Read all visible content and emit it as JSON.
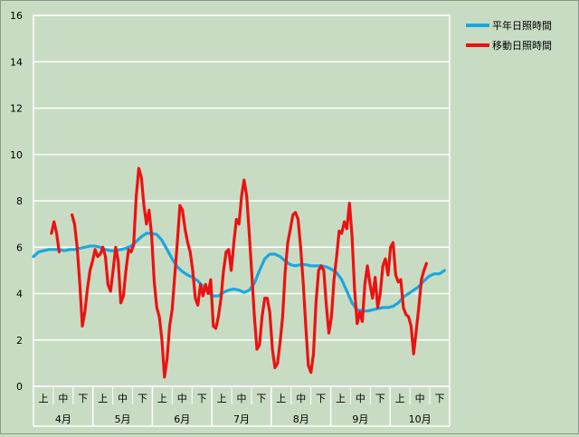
{
  "chart_data": {
    "type": "line",
    "ylim": [
      0,
      16
    ],
    "yticks": [
      0,
      2,
      4,
      6,
      8,
      10,
      12,
      14,
      16
    ],
    "grid": "horizontal",
    "legend_position": "top-right",
    "months": [
      "4月",
      "5月",
      "6月",
      "7月",
      "8月",
      "9月",
      "10月"
    ],
    "decades": [
      "上",
      "中",
      "下"
    ],
    "series": [
      {
        "name": "平年日照時間",
        "color": "#1aa7e0",
        "points": [
          [
            0,
            5.6
          ],
          [
            2,
            5.8
          ],
          [
            4,
            5.85
          ],
          [
            6,
            5.9
          ],
          [
            8,
            5.9
          ],
          [
            10,
            5.9
          ],
          [
            12,
            5.85
          ],
          [
            14,
            5.9
          ],
          [
            16,
            5.9
          ],
          [
            18,
            5.95
          ],
          [
            20,
            6.0
          ],
          [
            22,
            6.05
          ],
          [
            24,
            6.05
          ],
          [
            26,
            6.0
          ],
          [
            28,
            5.9
          ],
          [
            30,
            5.85
          ],
          [
            32,
            5.85
          ],
          [
            34,
            5.9
          ],
          [
            36,
            5.95
          ],
          [
            38,
            6.05
          ],
          [
            40,
            6.25
          ],
          [
            42,
            6.45
          ],
          [
            44,
            6.6
          ],
          [
            46,
            6.6
          ],
          [
            48,
            6.55
          ],
          [
            50,
            6.3
          ],
          [
            52,
            5.9
          ],
          [
            54,
            5.5
          ],
          [
            56,
            5.15
          ],
          [
            58,
            4.95
          ],
          [
            60,
            4.8
          ],
          [
            62,
            4.7
          ],
          [
            64,
            4.55
          ],
          [
            66,
            4.3
          ],
          [
            68,
            4.05
          ],
          [
            70,
            3.9
          ],
          [
            72,
            3.9
          ],
          [
            74,
            4.05
          ],
          [
            76,
            4.15
          ],
          [
            78,
            4.2
          ],
          [
            80,
            4.15
          ],
          [
            82,
            4.05
          ],
          [
            84,
            4.15
          ],
          [
            86,
            4.45
          ],
          [
            88,
            5.0
          ],
          [
            90,
            5.5
          ],
          [
            92,
            5.7
          ],
          [
            94,
            5.7
          ],
          [
            96,
            5.6
          ],
          [
            98,
            5.4
          ],
          [
            100,
            5.25
          ],
          [
            102,
            5.2
          ],
          [
            104,
            5.25
          ],
          [
            106,
            5.25
          ],
          [
            108,
            5.2
          ],
          [
            110,
            5.2
          ],
          [
            112,
            5.2
          ],
          [
            114,
            5.15
          ],
          [
            116,
            5.05
          ],
          [
            118,
            4.9
          ],
          [
            120,
            4.6
          ],
          [
            122,
            4.1
          ],
          [
            124,
            3.6
          ],
          [
            126,
            3.3
          ],
          [
            128,
            3.25
          ],
          [
            130,
            3.25
          ],
          [
            132,
            3.3
          ],
          [
            134,
            3.35
          ],
          [
            136,
            3.4
          ],
          [
            138,
            3.4
          ],
          [
            140,
            3.45
          ],
          [
            142,
            3.6
          ],
          [
            144,
            3.85
          ],
          [
            146,
            4.0
          ],
          [
            148,
            4.15
          ],
          [
            150,
            4.3
          ],
          [
            152,
            4.55
          ],
          [
            154,
            4.75
          ],
          [
            156,
            4.85
          ],
          [
            158,
            4.85
          ],
          [
            160,
            5.0
          ]
        ]
      },
      {
        "name": "移動日照時間",
        "color": "#ee1111",
        "segments": [
          [
            [
              7,
              6.6
            ],
            [
              8,
              7.1
            ],
            [
              9,
              6.6
            ],
            [
              10,
              5.8
            ]
          ],
          [
            [
              15,
              7.4
            ],
            [
              16,
              7.0
            ],
            [
              17,
              6.0
            ],
            [
              18,
              4.5
            ],
            [
              19,
              2.6
            ],
            [
              20,
              3.2
            ],
            [
              21,
              4.2
            ],
            [
              22,
              5.0
            ],
            [
              23,
              5.4
            ],
            [
              24,
              5.9
            ],
            [
              25,
              5.6
            ],
            [
              26,
              5.7
            ],
            [
              27,
              6.0
            ],
            [
              28,
              5.6
            ],
            [
              29,
              4.4
            ],
            [
              30,
              4.1
            ],
            [
              31,
              5.0
            ],
            [
              32,
              6.0
            ],
            [
              33,
              5.4
            ],
            [
              34,
              3.6
            ],
            [
              35,
              3.9
            ],
            [
              36,
              5.0
            ],
            [
              37,
              5.9
            ],
            [
              38,
              5.8
            ],
            [
              39,
              6.1
            ],
            [
              40,
              8.2
            ],
            [
              41,
              9.4
            ],
            [
              42,
              9.0
            ],
            [
              43,
              7.8
            ],
            [
              44,
              7.0
            ],
            [
              45,
              7.6
            ],
            [
              46,
              6.5
            ],
            [
              47,
              4.5
            ],
            [
              48,
              3.4
            ],
            [
              49,
              3.0
            ],
            [
              50,
              2.0
            ],
            [
              51,
              0.4
            ],
            [
              52,
              1.2
            ],
            [
              53,
              2.6
            ],
            [
              54,
              3.3
            ],
            [
              55,
              4.8
            ],
            [
              56,
              6.2
            ],
            [
              57,
              7.8
            ],
            [
              58,
              7.6
            ],
            [
              59,
              6.8
            ],
            [
              60,
              6.2
            ],
            [
              61,
              5.8
            ],
            [
              62,
              5.0
            ],
            [
              63,
              3.8
            ],
            [
              64,
              3.5
            ],
            [
              65,
              4.4
            ],
            [
              66,
              3.9
            ],
            [
              67,
              4.4
            ],
            [
              68,
              4.0
            ],
            [
              69,
              4.6
            ],
            [
              70,
              2.6
            ],
            [
              71,
              2.5
            ],
            [
              72,
              3.0
            ],
            [
              73,
              3.8
            ],
            [
              74,
              5.0
            ],
            [
              75,
              5.8
            ],
            [
              76,
              5.9
            ],
            [
              77,
              5.0
            ],
            [
              78,
              6.2
            ],
            [
              79,
              7.2
            ],
            [
              80,
              7.0
            ],
            [
              81,
              8.2
            ],
            [
              82,
              8.9
            ],
            [
              83,
              8.2
            ],
            [
              84,
              6.6
            ],
            [
              85,
              4.8
            ],
            [
              86,
              3.0
            ],
            [
              87,
              1.6
            ],
            [
              88,
              1.8
            ],
            [
              89,
              3.0
            ],
            [
              90,
              3.8
            ],
            [
              91,
              3.8
            ],
            [
              92,
              3.2
            ],
            [
              93,
              1.6
            ],
            [
              94,
              0.8
            ],
            [
              95,
              1.0
            ],
            [
              96,
              1.9
            ],
            [
              97,
              3.0
            ],
            [
              98,
              5.0
            ],
            [
              99,
              6.2
            ],
            [
              100,
              6.8
            ],
            [
              101,
              7.4
            ],
            [
              102,
              7.5
            ],
            [
              103,
              7.2
            ],
            [
              104,
              6.0
            ],
            [
              105,
              4.5
            ],
            [
              106,
              2.6
            ],
            [
              107,
              0.9
            ],
            [
              108,
              0.6
            ],
            [
              109,
              1.4
            ],
            [
              110,
              3.6
            ],
            [
              111,
              5.0
            ],
            [
              112,
              5.2
            ],
            [
              113,
              5.0
            ],
            [
              114,
              3.5
            ],
            [
              115,
              2.3
            ],
            [
              116,
              3.0
            ],
            [
              117,
              4.6
            ],
            [
              118,
              5.6
            ],
            [
              119,
              6.7
            ],
            [
              120,
              6.6
            ],
            [
              121,
              7.1
            ],
            [
              122,
              6.8
            ],
            [
              123,
              7.9
            ],
            [
              124,
              6.5
            ],
            [
              125,
              4.2
            ],
            [
              126,
              2.7
            ],
            [
              127,
              3.2
            ],
            [
              128,
              2.8
            ],
            [
              129,
              4.4
            ],
            [
              130,
              5.2
            ],
            [
              131,
              4.4
            ],
            [
              132,
              3.8
            ],
            [
              133,
              4.7
            ],
            [
              134,
              3.4
            ],
            [
              135,
              4.0
            ],
            [
              136,
              5.2
            ],
            [
              137,
              5.5
            ],
            [
              138,
              4.8
            ],
            [
              139,
              6.0
            ],
            [
              140,
              6.2
            ],
            [
              141,
              4.8
            ],
            [
              142,
              4.5
            ],
            [
              143,
              4.6
            ],
            [
              144,
              3.4
            ],
            [
              145,
              3.1
            ],
            [
              146,
              3.0
            ],
            [
              147,
              2.6
            ],
            [
              148,
              1.4
            ],
            [
              149,
              2.4
            ],
            [
              150,
              3.4
            ],
            [
              151,
              4.6
            ],
            [
              152,
              5.0
            ],
            [
              153,
              5.3
            ]
          ]
        ]
      }
    ]
  }
}
